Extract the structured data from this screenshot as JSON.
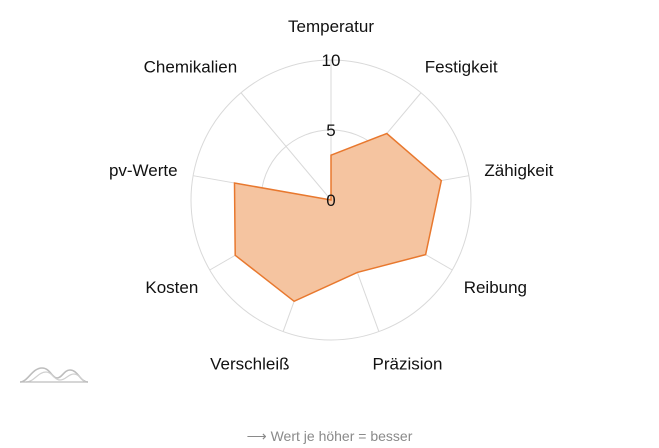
{
  "chart_data": {
    "type": "radar",
    "axes": [
      "Temperatur",
      "Festigkeit",
      "Zähigkeit",
      "Reibung",
      "Präzision",
      "Verschleiß",
      "Kosten",
      "pv-Werte",
      "Chemikalien"
    ],
    "series": [
      {
        "values": [
          3.2,
          6.2,
          8.0,
          7.8,
          5.5,
          7.7,
          7.9,
          7.0,
          0
        ]
      }
    ],
    "rlim": [
      0,
      10
    ],
    "rticks": [
      0,
      5,
      10
    ],
    "grid": true,
    "colors": {
      "fill": "#f5c4a0",
      "stroke": "#e8782e",
      "grid": "#d9d9d9",
      "logo": "#bdbdbd"
    }
  },
  "footnote": "⟶ Wert je höher = besser",
  "logo_icon": "wave-logo-icon"
}
